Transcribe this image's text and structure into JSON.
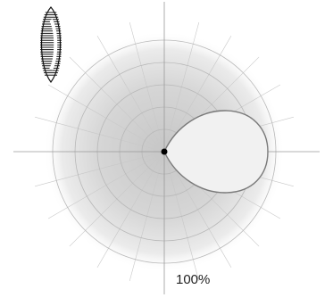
{
  "diagram": {
    "scale_label": "100%",
    "lamp_icon": "lamp-icon",
    "colors": {
      "glow_center": "#c9c9c9",
      "glow_edge": "#ffffff",
      "grid_ring": "#b8b8b8",
      "grid_ray": "#c8c8c8",
      "lobe_fill": "#f1f1f1",
      "lobe_stroke": "#7a7a7a",
      "origin": "#000000"
    }
  }
}
